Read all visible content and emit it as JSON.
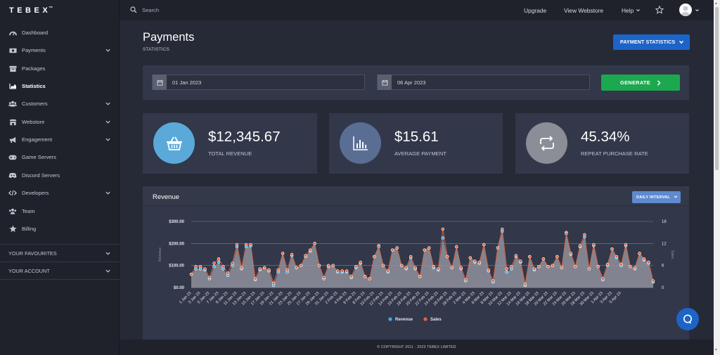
{
  "brand": {
    "name": "TEBEX",
    "mark": "™"
  },
  "sidebar": {
    "items": [
      {
        "label": "Dashboard"
      },
      {
        "label": "Payments"
      },
      {
        "label": "Packages"
      },
      {
        "label": "Statistics"
      },
      {
        "label": "Customers"
      },
      {
        "label": "Webstore"
      },
      {
        "label": "Engagement"
      },
      {
        "label": "Game Servers"
      },
      {
        "label": "Discord Servers"
      },
      {
        "label": "Developers"
      },
      {
        "label": "Team"
      },
      {
        "label": "Billing"
      }
    ],
    "sections": [
      {
        "label": "YOUR FAVOURITES"
      },
      {
        "label": "YOUR ACCOUNT"
      }
    ]
  },
  "topbar": {
    "search_placeholder": "Search",
    "upgrade": "Upgrade",
    "view_webstore": "View Webstore",
    "help": "Help"
  },
  "page": {
    "title": "Payments",
    "subtitle": "STATISTICS",
    "stats_button": "PAYMENT STATISTICS"
  },
  "filters": {
    "start_date": "01 Jan 2023",
    "end_date": "06 Apr 2023",
    "generate": "GENERATE"
  },
  "kpis": [
    {
      "value": "$12,345.67",
      "label": "TOTAL REVENUE",
      "color": "#5ba9d9"
    },
    {
      "value": "$15.61",
      "label": "AVERAGE PAYMENT",
      "color": "#5a6e94"
    },
    {
      "value": "45.34%",
      "label": "REPEAT PURCHASE RATE",
      "color": "#8b8e97"
    }
  ],
  "chart": {
    "title": "Revenue",
    "interval": "DAILY INTERVAL"
  },
  "chart_data": {
    "type": "area",
    "ylabel": "Revenue",
    "y2label": "Sales",
    "ylim": [
      0,
      300
    ],
    "y2lim": [
      0,
      18
    ],
    "yticks": [
      "$0.00",
      "$100.00",
      "$200.00",
      "$300.00"
    ],
    "y2ticks": [
      "0",
      "6",
      "12",
      "18"
    ],
    "grid": true,
    "legend_position": "bottom",
    "xtick_labels": [
      "1 Jan 23",
      "3 Jan 23",
      "5 Jan 23",
      "7 Jan 23",
      "9 Jan 23",
      "11 Jan 23",
      "13 Jan 23",
      "15 Jan 23",
      "17 Jan 23",
      "19 Jan 23",
      "21 Jan 23",
      "23 Jan 23",
      "25 Jan 23",
      "27 Jan 23",
      "29 Jan 23",
      "31 Jan 23",
      "2 Feb 23",
      "4 Feb 23",
      "6 Feb 23",
      "8 Feb 23",
      "10 Feb 23",
      "12 Feb 23",
      "14 Feb 23",
      "16 Feb 23",
      "18 Feb 23",
      "20 Feb 23",
      "22 Feb 23",
      "24 Feb 23",
      "26 Feb 23",
      "28 Feb 23",
      "2 Mar 23",
      "4 Mar 23",
      "6 Mar 23",
      "8 Mar 23",
      "10 Mar 23",
      "12 Mar 23",
      "14 Mar 23",
      "16 Mar 23",
      "18 Mar 23",
      "20 Mar 23",
      "22 Mar 23",
      "24 Mar 23",
      "26 Mar 23",
      "28 Mar 23",
      "30 Mar 23",
      "1 Apr 23",
      "3 Apr 23",
      "5 Apr 23"
    ],
    "series": [
      {
        "name": "Revenue",
        "color": "#3fa9ec",
        "axis": "left",
        "values": [
          60,
          85,
          85,
          80,
          40,
          95,
          115,
          85,
          55,
          100,
          185,
          85,
          185,
          190,
          35,
          80,
          90,
          75,
          10,
          70,
          155,
          70,
          145,
          90,
          100,
          140,
          165,
          200,
          100,
          40,
          95,
          100,
          70,
          70,
          70,
          45,
          90,
          110,
          50,
          40,
          140,
          190,
          100,
          70,
          170,
          180,
          100,
          85,
          135,
          85,
          50,
          170,
          180,
          90,
          80,
          225,
          140,
          90,
          185,
          85,
          30,
          135,
          115,
          110,
          195,
          75,
          25,
          180,
          255,
          70,
          85,
          140,
          115,
          10,
          140,
          80,
          95,
          130,
          95,
          100,
          140,
          90,
          250,
          150,
          95,
          185,
          230,
          85,
          190,
          95,
          35,
          100,
          175,
          135,
          100,
          190,
          95,
          85,
          155,
          125,
          110,
          25
        ]
      },
      {
        "name": "Sales",
        "color": "#e0643e",
        "axis": "right",
        "values": [
          3.6,
          5.7,
          5.7,
          5.1,
          2.7,
          6.6,
          7.8,
          5.7,
          3.9,
          6.6,
          11.7,
          5.4,
          11.7,
          11.7,
          2.4,
          5.1,
          5.4,
          4.8,
          1.2,
          4.8,
          9.3,
          4.8,
          9.0,
          5.4,
          6.0,
          8.7,
          10.2,
          12.0,
          6.0,
          2.7,
          6.0,
          6.0,
          4.5,
          4.5,
          4.5,
          3.0,
          5.7,
          6.9,
          3.0,
          2.4,
          8.4,
          11.1,
          6.0,
          4.5,
          10.2,
          10.8,
          6.0,
          5.4,
          8.4,
          5.4,
          3.0,
          10.2,
          10.8,
          5.7,
          5.1,
          15.9,
          8.4,
          5.4,
          11.1,
          5.4,
          2.1,
          8.1,
          7.2,
          6.9,
          11.7,
          4.8,
          1.8,
          10.8,
          15.9,
          5.1,
          5.7,
          8.7,
          7.2,
          0.9,
          8.4,
          5.1,
          5.7,
          7.8,
          5.7,
          6.0,
          8.4,
          5.4,
          14.7,
          9.3,
          5.7,
          11.4,
          14.4,
          5.1,
          11.7,
          5.7,
          2.4,
          6.3,
          10.5,
          8.4,
          6.3,
          11.7,
          5.7,
          5.4,
          9.3,
          7.8,
          6.9,
          1.8
        ]
      }
    ]
  },
  "footer": {
    "text": "© COPYRIGHT 2011 - 2023 TEBEX LIMITED"
  }
}
